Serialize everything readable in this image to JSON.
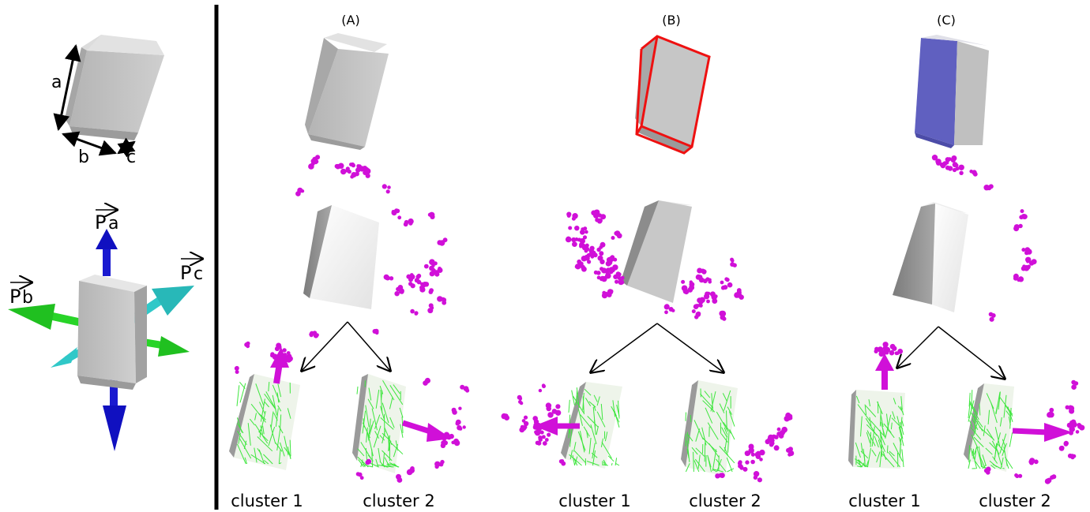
{
  "legend": {
    "dim_a": "a",
    "dim_b": "b",
    "dim_c": "c",
    "pa_main": "P",
    "pa_sub": "a",
    "pb_main": "P",
    "pb_sub": "b",
    "pc_main": "P",
    "pc_sub": "c"
  },
  "panels": [
    {
      "title": "(A)",
      "cluster1": "cluster 1",
      "cluster2": "cluster 2"
    },
    {
      "title": "(B)",
      "cluster1": "cluster 1",
      "cluster2": "cluster 2"
    },
    {
      "title": "(C)",
      "cluster1": "cluster 1",
      "cluster2": "cluster 2"
    }
  ],
  "colors": {
    "box_gray": "#c4c4c4",
    "box_dark": "#8f8f8f",
    "box_white": "#f4f4f4",
    "points": "#d010d8",
    "fibers": "#3ee63e",
    "highlight_edges": "#ee1111",
    "highlight_face": "#6060c0",
    "arrow_pa": "#1010c8",
    "arrow_pb": "#28d428",
    "arrow_pc": "#30c8c8",
    "divider": "#000000"
  }
}
